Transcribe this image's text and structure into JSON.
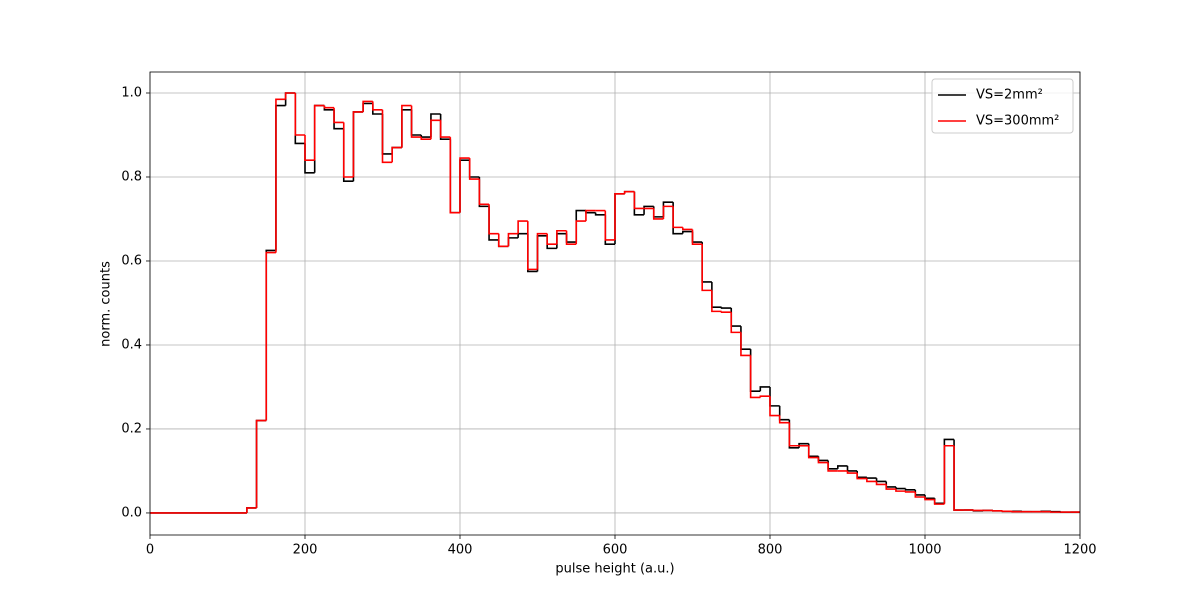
{
  "chart_data": {
    "type": "histogram",
    "xlabel": "pulse height (a.u.)",
    "ylabel": "norm. counts",
    "xlim": [
      0,
      1200
    ],
    "ylim": [
      -0.0525,
      1.05
    ],
    "xticks": [
      0,
      200,
      400,
      600,
      800,
      1000,
      1200
    ],
    "yticks": [
      {
        "value": 0,
        "label": "0.0"
      },
      0.2,
      0.4,
      0.6,
      0.8,
      {
        "value": 1,
        "label": "1.0"
      }
    ],
    "grid": true,
    "legend": "upper right",
    "bins": [
      0,
      12.5,
      25,
      37.5,
      50,
      62.5,
      75,
      87.5,
      100,
      112.5,
      125,
      137.5,
      150,
      162.5,
      175,
      187.5,
      200,
      212.5,
      225,
      237.5,
      250,
      262.5,
      275,
      287.5,
      300,
      312.5,
      325,
      337.5,
      350,
      362.5,
      375,
      387.5,
      400,
      412.5,
      425,
      437.5,
      450,
      462.5,
      475,
      487.5,
      500,
      512.5,
      525,
      537.5,
      550,
      562.5,
      575,
      587.5,
      600,
      612.5,
      625,
      637.5,
      650,
      662.5,
      675,
      687.5,
      700,
      712.5,
      725,
      737.5,
      750,
      762.5,
      775,
      787.5,
      800,
      812.5,
      825,
      837.5,
      850,
      862.5,
      875,
      887.5,
      900,
      912.5,
      925,
      937.5,
      950,
      962.5,
      975,
      987.5,
      1000,
      1012.5,
      1025,
      1037.5,
      1050,
      1062.5,
      1075,
      1087.5,
      1100,
      1112.5,
      1125,
      1137.5,
      1150,
      1162.5,
      1175,
      1187.5,
      1200
    ],
    "series": [
      {
        "name": "VS=2mm²",
        "color": "#000000",
        "values": [
          0,
          0,
          0,
          0,
          0,
          0,
          0,
          0,
          0,
          0,
          0.012,
          0.22,
          0.625,
          0.97,
          1.0,
          0.88,
          0.81,
          0.97,
          0.96,
          0.915,
          0.79,
          0.955,
          0.975,
          0.95,
          0.855,
          0.87,
          0.96,
          0.9,
          0.895,
          0.95,
          0.89,
          0.715,
          0.84,
          0.8,
          0.73,
          0.65,
          0.635,
          0.655,
          0.665,
          0.575,
          0.66,
          0.63,
          0.665,
          0.645,
          0.72,
          0.715,
          0.71,
          0.64,
          0.76,
          0.765,
          0.71,
          0.73,
          0.705,
          0.74,
          0.665,
          0.67,
          0.645,
          0.55,
          0.49,
          0.488,
          0.445,
          0.39,
          0.29,
          0.3,
          0.255,
          0.222,
          0.155,
          0.165,
          0.135,
          0.125,
          0.105,
          0.112,
          0.1,
          0.085,
          0.083,
          0.075,
          0.062,
          0.058,
          0.055,
          0.043,
          0.035,
          0.023,
          0.175,
          0.007,
          0.007,
          0.005,
          0.006,
          0.005,
          0.004,
          0.004,
          0.003,
          0.003,
          0.004,
          0.003,
          0.002,
          0.002
        ]
      },
      {
        "name": "VS=300mm²",
        "color": "#ff0000",
        "values": [
          0,
          0,
          0,
          0,
          0,
          0,
          0,
          0,
          0,
          0,
          0.012,
          0.22,
          0.62,
          0.985,
          1.0,
          0.9,
          0.84,
          0.97,
          0.965,
          0.93,
          0.8,
          0.955,
          0.98,
          0.96,
          0.835,
          0.87,
          0.97,
          0.895,
          0.89,
          0.935,
          0.895,
          0.715,
          0.845,
          0.795,
          0.735,
          0.665,
          0.635,
          0.665,
          0.695,
          0.58,
          0.665,
          0.64,
          0.672,
          0.64,
          0.695,
          0.72,
          0.72,
          0.65,
          0.76,
          0.765,
          0.725,
          0.725,
          0.7,
          0.73,
          0.68,
          0.675,
          0.64,
          0.53,
          0.48,
          0.478,
          0.43,
          0.375,
          0.275,
          0.278,
          0.232,
          0.215,
          0.16,
          0.16,
          0.132,
          0.12,
          0.1,
          0.1,
          0.095,
          0.082,
          0.075,
          0.068,
          0.057,
          0.052,
          0.05,
          0.038,
          0.032,
          0.021,
          0.16,
          0.007,
          0.007,
          0.006,
          0.006,
          0.005,
          0.004,
          0.003,
          0.003,
          0.003,
          0.003,
          0.002,
          0.002,
          0.002
        ]
      }
    ]
  }
}
